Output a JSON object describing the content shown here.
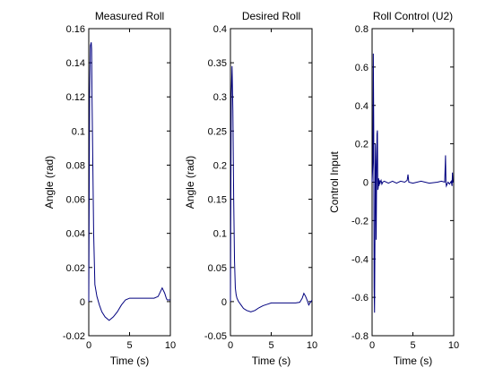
{
  "chart_data": [
    {
      "type": "line",
      "title": "Measured Roll",
      "xlabel": "Time (s)",
      "ylabel": "Angle (rad)",
      "xlim": [
        0,
        10
      ],
      "ylim": [
        -0.02,
        0.16
      ],
      "xticks": [
        "0",
        "5",
        "10"
      ],
      "yticks": [
        "-0.02",
        "0",
        "0.02",
        "0.04",
        "0.06",
        "0.08",
        "0.1",
        "0.12",
        "0.14",
        "0.16"
      ],
      "grid": false,
      "color": "#00007f",
      "x": [
        0,
        0.05,
        0.1,
        0.2,
        0.3,
        0.35,
        0.4,
        0.5,
        0.6,
        0.75,
        1.0,
        1.3,
        1.6,
        2.0,
        2.5,
        3.0,
        3.5,
        4.0,
        4.5,
        5.0,
        6.0,
        7.0,
        8.0,
        8.5,
        8.8,
        9.0,
        9.1,
        9.3,
        9.5,
        9.6,
        9.8,
        10.0
      ],
      "y": [
        0,
        0.06,
        0.12,
        0.15,
        0.152,
        0.148,
        0.12,
        0.08,
        0.04,
        0.01,
        0.003,
        -0.002,
        -0.006,
        -0.009,
        -0.011,
        -0.009,
        -0.006,
        -0.002,
        0.001,
        0.002,
        0.002,
        0.002,
        0.002,
        0.003,
        0.006,
        0.008,
        0.007,
        0.005,
        0.002,
        0.001,
        0.001,
        0.001
      ]
    },
    {
      "type": "line",
      "title": "Desired Roll",
      "xlabel": "Time (s)",
      "ylabel": "Angle (rad)",
      "xlim": [
        0,
        10
      ],
      "ylim": [
        -0.05,
        0.4
      ],
      "xticks": [
        "0",
        "5",
        "10"
      ],
      "yticks": [
        "-0.05",
        "0",
        "0.05",
        "0.1",
        "0.15",
        "0.2",
        "0.25",
        "0.3",
        "0.35",
        "0.4"
      ],
      "grid": false,
      "color": "#00007f",
      "x": [
        0,
        0.05,
        0.1,
        0.2,
        0.3,
        0.4,
        0.5,
        0.6,
        0.7,
        0.8,
        1.0,
        1.3,
        1.6,
        2.0,
        2.5,
        3.0,
        3.5,
        4.0,
        4.5,
        5.0,
        6.0,
        7.0,
        8.0,
        8.5,
        8.8,
        9.0,
        9.2,
        9.4,
        9.6,
        9.8,
        10.0
      ],
      "y": [
        0,
        0.15,
        0.3,
        0.345,
        0.28,
        0.15,
        0.06,
        0.02,
        0.01,
        0.005,
        0.0,
        -0.005,
        -0.01,
        -0.013,
        -0.015,
        -0.013,
        -0.009,
        -0.006,
        -0.004,
        -0.002,
        -0.002,
        -0.002,
        -0.002,
        -0.001,
        0.005,
        0.012,
        0.008,
        0.002,
        -0.005,
        -0.001,
        0.002
      ]
    },
    {
      "type": "line",
      "title": "Roll Control (U2)",
      "xlabel": "Time (s)",
      "ylabel": "Control Input",
      "xlim": [
        0,
        10
      ],
      "ylim": [
        -0.8,
        0.8
      ],
      "xticks": [
        "0",
        "5",
        "10"
      ],
      "yticks": [
        "-0.8",
        "-0.6",
        "-0.4",
        "-0.2",
        "0",
        "0.2",
        "0.4",
        "0.6",
        "0.8"
      ],
      "grid": false,
      "color": "#00007f",
      "x": [
        0,
        0.1,
        0.15,
        0.2,
        0.25,
        0.3,
        0.35,
        0.4,
        0.45,
        0.5,
        0.55,
        0.6,
        0.65,
        0.7,
        0.75,
        0.8,
        0.85,
        0.9,
        0.95,
        1.0,
        1.1,
        1.2,
        1.3,
        1.5,
        2.0,
        2.5,
        3.0,
        3.5,
        4.0,
        4.3,
        4.4,
        4.5,
        5.0,
        6.0,
        7.0,
        8.0,
        8.5,
        8.9,
        9.0,
        9.05,
        9.1,
        9.3,
        9.5,
        9.7,
        9.8,
        9.85,
        9.9,
        10.0
      ],
      "y": [
        0,
        0.1,
        0.67,
        0.3,
        -0.55,
        -0.68,
        -0.3,
        0.2,
        0.08,
        -0.3,
        0.0,
        0.25,
        0.27,
        -0.04,
        -0.03,
        0.02,
        -0.02,
        0.01,
        -0.01,
        0.0,
        0.01,
        -0.01,
        0.0,
        0.005,
        -0.005,
        0.005,
        -0.005,
        0.005,
        0.0,
        0.01,
        0.04,
        0.0,
        -0.005,
        0.005,
        -0.005,
        0.0,
        0.005,
        0.0,
        0.14,
        0.0,
        -0.02,
        0.0,
        -0.01,
        0.005,
        -0.02,
        0.05,
        0.0,
        0.0
      ]
    }
  ]
}
